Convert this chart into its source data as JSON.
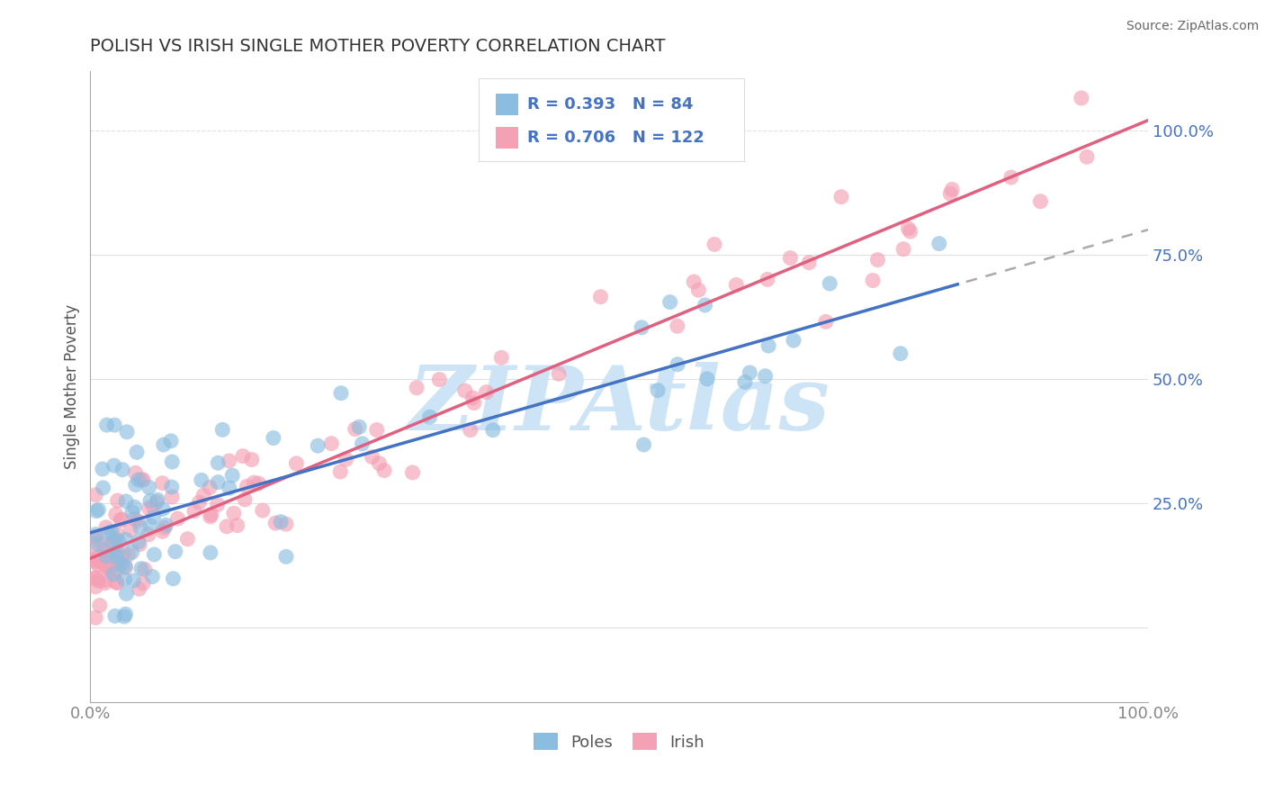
{
  "title": "POLISH VS IRISH SINGLE MOTHER POVERTY CORRELATION CHART",
  "source": "Source: ZipAtlas.com",
  "ylabel": "Single Mother Poverty",
  "xlim": [
    0,
    1
  ],
  "ylim": [
    -0.15,
    1.12
  ],
  "poles_R": 0.393,
  "poles_N": 84,
  "irish_R": 0.706,
  "irish_N": 122,
  "poles_color": "#8bbde0",
  "irish_color": "#f4a0b5",
  "poles_line_color": "#4472c4",
  "irish_line_color": "#e06080",
  "watermark": "ZIPAtlas",
  "watermark_color": "#c8dff0",
  "background_color": "#ffffff",
  "grid_color": "#e0e0e0",
  "legend_text_color": "#4472c4",
  "title_color": "#333333",
  "source_color": "#666666",
  "ylabel_color": "#555555",
  "poles_line_intercept": 0.2,
  "poles_line_slope": 0.55,
  "irish_line_intercept": 0.15,
  "irish_line_slope": 0.88
}
